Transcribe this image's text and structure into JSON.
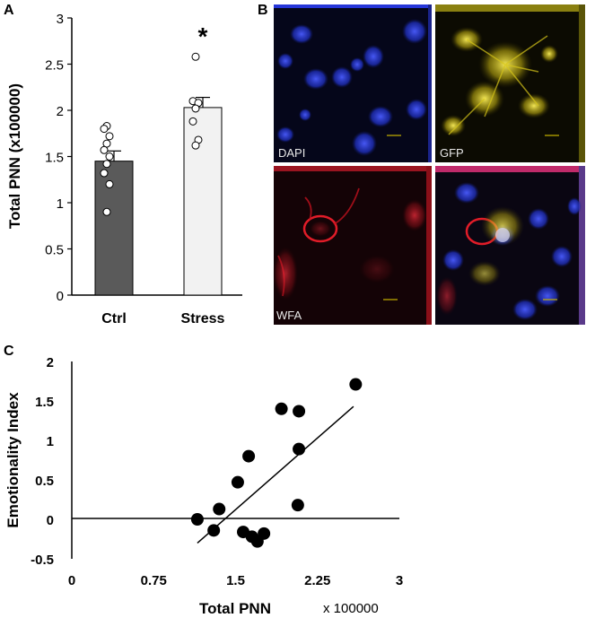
{
  "panel_labels": {
    "a": "A",
    "b": "B",
    "c": "C"
  },
  "chart_data": [
    {
      "panel": "A",
      "type": "bar",
      "title": "",
      "xlabel": "",
      "ylabel": "Total PNN (x100000)",
      "ylim": [
        0,
        3
      ],
      "yticks": [
        "0",
        "0.5",
        "1",
        "1.5",
        "2",
        "2.5",
        "3"
      ],
      "categories": [
        "Ctrl",
        "Stress"
      ],
      "values": [
        1.45,
        2.03
      ],
      "errors": [
        0.11,
        0.11
      ],
      "bar_colors": [
        "#5a5a5a",
        "#f2f2f2"
      ],
      "points": [
        [
          1.83,
          1.8,
          1.72,
          1.64,
          1.57,
          1.5,
          1.42,
          1.32,
          1.2,
          0.9
        ],
        [
          2.58,
          2.1,
          2.08,
          2.02,
          1.88,
          1.68,
          1.62
        ]
      ],
      "significance": [
        "",
        "*"
      ]
    },
    {
      "panel": "C",
      "type": "scatter",
      "title": "",
      "xlabel": "Total PNN",
      "xunit_note": "x 100000",
      "ylabel": "Emotionality Index",
      "xlim": [
        0,
        3
      ],
      "ylim": [
        -0.5,
        2
      ],
      "xticks": [
        "0",
        "0.75",
        "1.5",
        "2.25",
        "3"
      ],
      "yticks": [
        "-0.5",
        "0",
        "0.5",
        "1",
        "1.5",
        "2"
      ],
      "x": [
        1.15,
        1.3,
        1.35,
        1.52,
        1.57,
        1.62,
        1.65,
        1.7,
        1.76,
        1.92,
        2.07,
        2.08,
        2.08,
        2.6
      ],
      "y": [
        0.0,
        -0.14,
        0.13,
        0.47,
        -0.16,
        0.8,
        -0.22,
        -0.28,
        -0.18,
        1.4,
        0.18,
        0.89,
        1.37,
        1.71
      ],
      "trendline": {
        "x": [
          1.15,
          2.58
        ],
        "y": [
          -0.3,
          1.43
        ]
      }
    }
  ],
  "micrographs": {
    "tiles": [
      {
        "label": "DAPI",
        "color": "#1f3cff"
      },
      {
        "label": "GFP",
        "color": "#e6d21a"
      },
      {
        "label": "WFA",
        "color": "#e0222a"
      },
      {
        "label": "",
        "color": "#c8c8ff"
      }
    ]
  }
}
